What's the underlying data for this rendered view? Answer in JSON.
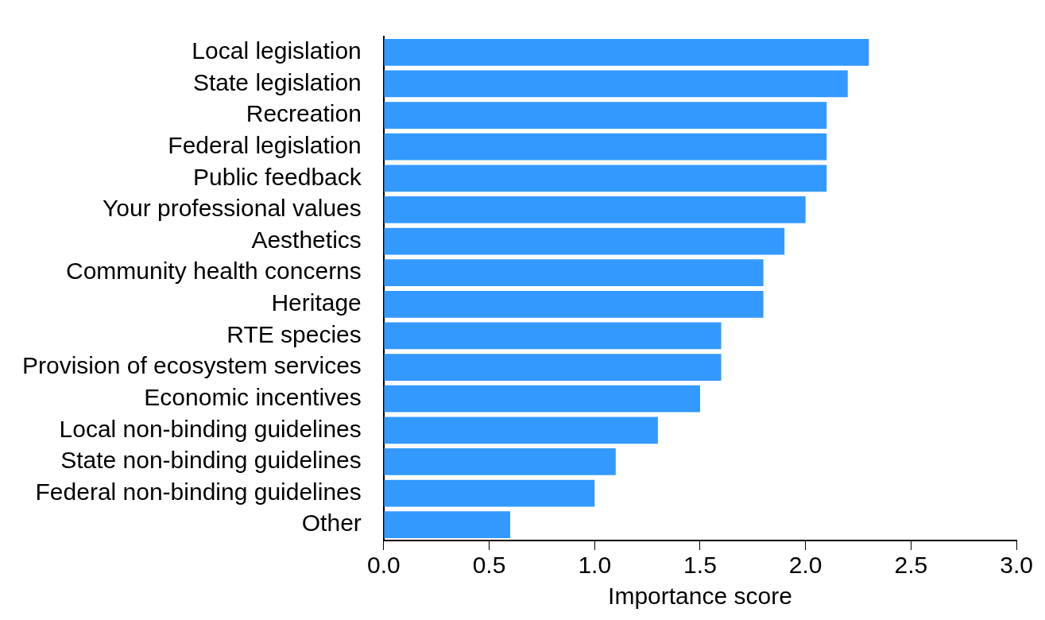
{
  "chart_data": {
    "type": "bar",
    "orientation": "horizontal",
    "xlabel": "Importance score",
    "categories": [
      "Local legislation",
      "State legislation",
      "Recreation",
      "Federal legislation",
      "Public feedback",
      "Your professional values",
      "Aesthetics",
      "Community health concerns",
      "Heritage",
      "RTE species",
      "Provision of ecosystem services",
      "Economic incentives",
      "Local non-binding guidelines",
      "State non-binding guidelines",
      "Federal non-binding guidelines",
      "Other"
    ],
    "values": [
      2.3,
      2.2,
      2.1,
      2.1,
      2.1,
      2.0,
      1.9,
      1.8,
      1.8,
      1.6,
      1.6,
      1.5,
      1.3,
      1.1,
      1.0,
      0.6
    ],
    "color": "#3399ff",
    "xlim": [
      0,
      3
    ],
    "xticks": [
      {
        "value": 0,
        "label": "0.0"
      },
      {
        "value": 0.5,
        "label": "0.5"
      },
      {
        "value": 1,
        "label": "1.0"
      },
      {
        "value": 1.5,
        "label": "1.5"
      },
      {
        "value": 2,
        "label": "2.0"
      },
      {
        "value": 2.5,
        "label": "2.5"
      },
      {
        "value": 3,
        "label": "3.0"
      }
    ],
    "grid": false,
    "legend": false
  }
}
